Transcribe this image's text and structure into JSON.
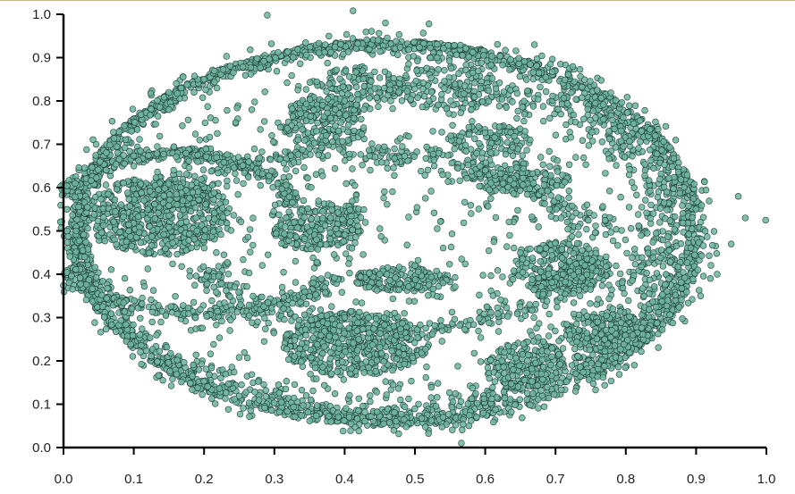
{
  "chart_data": {
    "type": "scatter",
    "title": "",
    "xlabel": "",
    "ylabel": "",
    "xlim": [
      0,
      1
    ],
    "ylim": [
      0,
      1
    ],
    "x_ticks": [
      "0.0",
      "0.1",
      "0.2",
      "0.3",
      "0.4",
      "0.5",
      "0.6",
      "0.7",
      "0.8",
      "0.9",
      "1.0"
    ],
    "y_ticks": [
      "0.0",
      "0.1",
      "0.2",
      "0.3",
      "0.4",
      "0.5",
      "0.6",
      "0.7",
      "0.8",
      "0.9",
      "1.0"
    ],
    "grid": false,
    "marker_color": "#6fb5a0",
    "marker_edge": "#1f3f36",
    "series": [
      {
        "description": "dense scatter of several thousand points forming an outer elliptical ring with internal island clusters",
        "points": [
          [
            0.29,
            0.998
          ],
          [
            0.412,
            1.008
          ],
          [
            0.566,
            0.01
          ],
          [
            0.999,
            0.525
          ],
          [
            0.458,
            0.98
          ],
          [
            0.52,
            0.978
          ],
          [
            0.67,
            0.93
          ],
          [
            0.005,
            0.55
          ],
          [
            0.005,
            0.5
          ],
          [
            0.03,
            0.44
          ],
          [
            0.97,
            0.53
          ],
          [
            0.96,
            0.58
          ],
          [
            0.95,
            0.47
          ],
          [
            0.93,
            0.4
          ],
          [
            0.15,
            0.535
          ],
          [
            0.17,
            0.57
          ],
          [
            0.19,
            0.5
          ],
          [
            0.12,
            0.55
          ],
          [
            0.38,
            0.53
          ],
          [
            0.36,
            0.48
          ],
          [
            0.33,
            0.43
          ],
          [
            0.46,
            0.4
          ],
          [
            0.5,
            0.42
          ],
          [
            0.54,
            0.38
          ],
          [
            0.42,
            0.25
          ],
          [
            0.38,
            0.22
          ],
          [
            0.47,
            0.28
          ],
          [
            0.4,
            0.3
          ],
          [
            0.69,
            0.4
          ],
          [
            0.72,
            0.43
          ],
          [
            0.65,
            0.45
          ],
          [
            0.78,
            0.27
          ],
          [
            0.76,
            0.29
          ],
          [
            0.81,
            0.26
          ],
          [
            0.66,
            0.2
          ],
          [
            0.68,
            0.17
          ],
          [
            0.64,
            0.18
          ],
          [
            0.38,
            0.76
          ],
          [
            0.36,
            0.73
          ],
          [
            0.4,
            0.8
          ],
          [
            0.52,
            0.8
          ],
          [
            0.58,
            0.78
          ],
          [
            0.62,
            0.74
          ],
          [
            0.2,
            0.85
          ],
          [
            0.15,
            0.78
          ],
          [
            0.1,
            0.65
          ]
        ]
      }
    ]
  }
}
